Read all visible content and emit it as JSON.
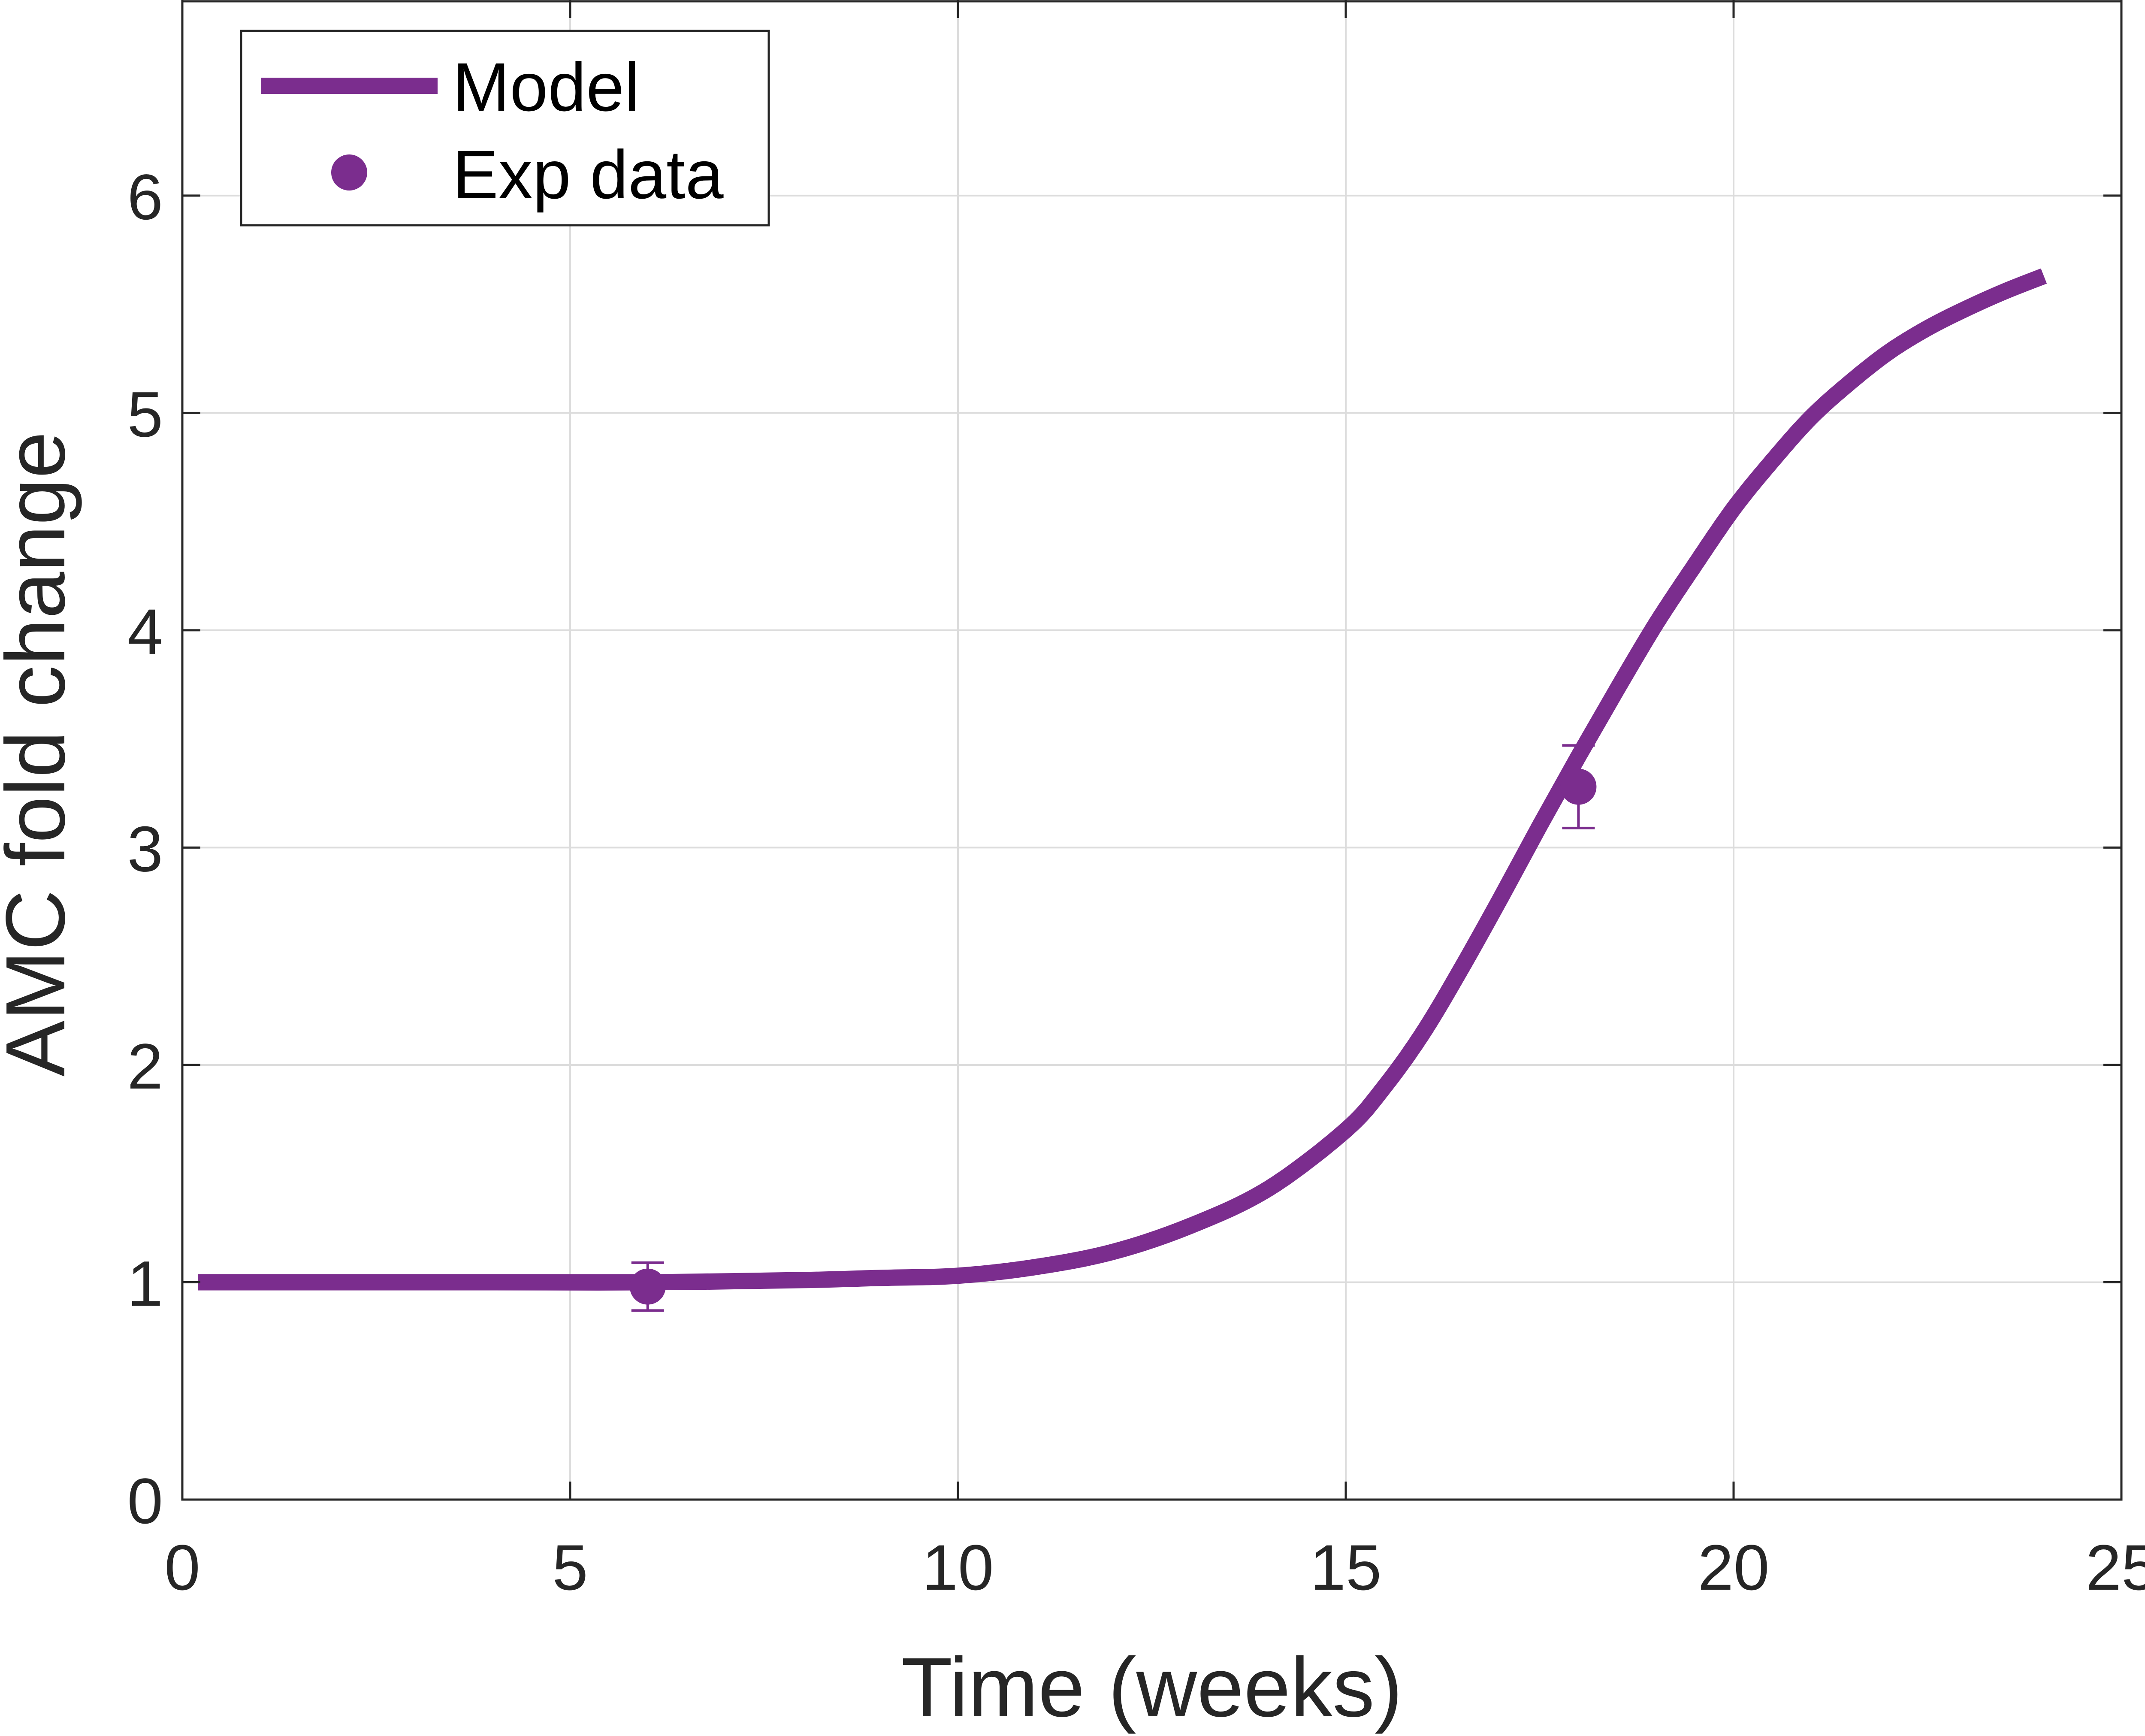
{
  "chart_data": {
    "type": "line",
    "xlabel": "Time (weeks)",
    "ylabel": "AMC fold change",
    "xlim": [
      0,
      25
    ],
    "ylim": [
      0,
      6.9
    ],
    "xticks": [
      0,
      5,
      10,
      15,
      20,
      25
    ],
    "yticks": [
      0,
      1,
      2,
      3,
      4,
      5,
      6
    ],
    "xtick_labels": [
      "0",
      "5",
      "10",
      "15",
      "20",
      "25"
    ],
    "ytick_labels": [
      "0",
      "1",
      "2",
      "3",
      "4",
      "5",
      "6"
    ],
    "grid": true,
    "legend_position": "top-left",
    "color": "#7b2d8e",
    "series": [
      {
        "name": "Model",
        "kind": "line",
        "x": [
          0.2,
          2,
          4,
          6,
          8,
          9,
          10,
          11,
          12,
          13,
          14,
          15,
          15.5,
          16,
          16.5,
          17,
          17.5,
          18,
          18.5,
          19,
          19.5,
          20,
          20.5,
          21,
          21.5,
          22,
          22.5,
          23,
          23.5,
          24
        ],
        "y": [
          1.0,
          1.0,
          1.0,
          1.0,
          1.01,
          1.02,
          1.03,
          1.07,
          1.14,
          1.26,
          1.43,
          1.7,
          1.9,
          2.15,
          2.45,
          2.77,
          3.1,
          3.42,
          3.73,
          4.03,
          4.3,
          4.56,
          4.78,
          4.98,
          5.14,
          5.28,
          5.39,
          5.48,
          5.56,
          5.63
        ]
      },
      {
        "name": "Exp data",
        "kind": "points",
        "x": [
          6,
          18
        ],
        "y": [
          0.98,
          3.28
        ],
        "error": [
          0.11,
          0.19
        ]
      }
    ]
  }
}
